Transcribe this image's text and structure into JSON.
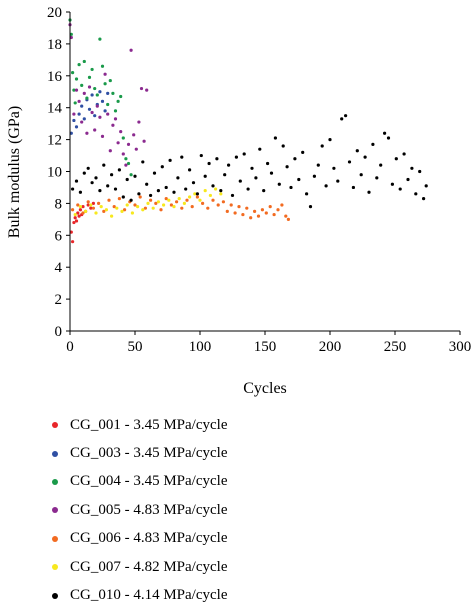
{
  "chart_data": {
    "type": "scatter",
    "xlabel": "Cycles",
    "ylabel": "Bulk modulus (GPa)",
    "xlim": [
      0,
      300
    ],
    "ylim": [
      0,
      20
    ],
    "x_ticks": [
      0,
      50,
      100,
      150,
      200,
      250,
      300
    ],
    "y_ticks": [
      0,
      2,
      4,
      6,
      8,
      10,
      12,
      14,
      16,
      18,
      20
    ],
    "grid": false,
    "legend_position": "below",
    "series": [
      {
        "name": "CG_001 - 3.45 MPa/cycle",
        "color": "#e8262a",
        "points": [
          [
            1,
            6.2
          ],
          [
            2,
            5.6
          ],
          [
            3,
            6.8
          ],
          [
            4,
            7.1
          ],
          [
            5,
            6.9
          ],
          [
            6,
            7.4
          ],
          [
            7,
            7.2
          ],
          [
            8,
            7.6
          ],
          [
            9,
            7.3
          ],
          [
            10,
            7.8
          ],
          [
            12,
            7.5
          ],
          [
            14,
            7.9
          ],
          [
            16,
            7.7
          ],
          [
            18,
            8.0
          ]
        ]
      },
      {
        "name": "CG_003 - 3.45 MPa/cycle",
        "color": "#2f4fa3",
        "points": [
          [
            1,
            12.4
          ],
          [
            3,
            13.2
          ],
          [
            5,
            12.8
          ],
          [
            7,
            13.6
          ],
          [
            9,
            14.1
          ],
          [
            11,
            13.3
          ],
          [
            13,
            14.5
          ],
          [
            15,
            13.9
          ],
          [
            17,
            14.8
          ],
          [
            19,
            13.5
          ],
          [
            21,
            14.2
          ],
          [
            23,
            15.0
          ],
          [
            25,
            14.4
          ],
          [
            27,
            13.8
          ],
          [
            29,
            14.9
          ]
        ]
      },
      {
        "name": "CG_004 - 3.45 MPa/cycle",
        "color": "#1a9a4a",
        "points": [
          [
            0,
            19.5
          ],
          [
            1,
            18.6
          ],
          [
            2,
            16.2
          ],
          [
            3,
            15.1
          ],
          [
            4,
            14.3
          ],
          [
            5,
            15.8
          ],
          [
            7,
            16.7
          ],
          [
            9,
            15.4
          ],
          [
            11,
            16.9
          ],
          [
            13,
            14.6
          ],
          [
            15,
            15.9
          ],
          [
            17,
            16.4
          ],
          [
            19,
            15.2
          ],
          [
            21,
            14.8
          ],
          [
            23,
            18.3
          ],
          [
            25,
            16.6
          ],
          [
            27,
            15.5
          ],
          [
            29,
            14.2
          ],
          [
            31,
            15.7
          ],
          [
            33,
            14.9
          ],
          [
            35,
            13.8
          ],
          [
            37,
            14.4
          ],
          [
            39,
            14.7
          ],
          [
            41,
            12.1
          ],
          [
            43,
            10.8
          ],
          [
            45,
            10.5
          ],
          [
            47,
            9.8
          ]
        ]
      },
      {
        "name": "CG_005 - 4.83 MPa/cycle",
        "color": "#8b2a8f",
        "points": [
          [
            0,
            19.2
          ],
          [
            1,
            18.4
          ],
          [
            3,
            13.6
          ],
          [
            5,
            15.1
          ],
          [
            7,
            14.4
          ],
          [
            9,
            13.1
          ],
          [
            11,
            14.9
          ],
          [
            13,
            12.4
          ],
          [
            15,
            15.3
          ],
          [
            17,
            13.7
          ],
          [
            19,
            12.6
          ],
          [
            21,
            14.1
          ],
          [
            23,
            13.4
          ],
          [
            25,
            12.2
          ],
          [
            27,
            16.1
          ],
          [
            29,
            13.6
          ],
          [
            31,
            11.3
          ],
          [
            33,
            12.9
          ],
          [
            35,
            13.3
          ],
          [
            37,
            11.8
          ],
          [
            39,
            12.5
          ],
          [
            41,
            11.1
          ],
          [
            43,
            10.4
          ],
          [
            45,
            11.7
          ],
          [
            47,
            17.6
          ],
          [
            49,
            12.3
          ],
          [
            51,
            11.4
          ],
          [
            53,
            13.1
          ],
          [
            55,
            15.2
          ],
          [
            57,
            11.9
          ],
          [
            59,
            15.1
          ]
        ]
      },
      {
        "name": "CG_006 - 4.83 MPa/cycle",
        "color": "#f26b21",
        "points": [
          [
            2,
            7.6
          ],
          [
            6,
            7.9
          ],
          [
            10,
            7.4
          ],
          [
            14,
            8.1
          ],
          [
            18,
            7.7
          ],
          [
            22,
            8.0
          ],
          [
            26,
            7.5
          ],
          [
            30,
            8.2
          ],
          [
            34,
            7.8
          ],
          [
            38,
            8.3
          ],
          [
            42,
            7.6
          ],
          [
            46,
            8.1
          ],
          [
            50,
            7.9
          ],
          [
            54,
            8.4
          ],
          [
            58,
            7.7
          ],
          [
            62,
            8.2
          ],
          [
            66,
            8.0
          ],
          [
            70,
            7.6
          ],
          [
            74,
            8.3
          ],
          [
            78,
            7.9
          ],
          [
            82,
            8.1
          ],
          [
            86,
            7.7
          ],
          [
            90,
            8.2
          ],
          [
            94,
            7.8
          ],
          [
            98,
            8.4
          ],
          [
            102,
            8.0
          ],
          [
            106,
            7.7
          ],
          [
            110,
            8.2
          ],
          [
            114,
            7.9
          ],
          [
            118,
            8.1
          ],
          [
            121,
            7.5
          ],
          [
            124,
            7.9
          ],
          [
            127,
            7.4
          ],
          [
            130,
            7.8
          ],
          [
            133,
            7.3
          ],
          [
            136,
            7.7
          ],
          [
            139,
            7.1
          ],
          [
            142,
            7.5
          ],
          [
            145,
            7.2
          ],
          [
            148,
            7.6
          ],
          [
            151,
            7.4
          ],
          [
            154,
            7.8
          ],
          [
            157,
            7.3
          ],
          [
            160,
            7.6
          ],
          [
            163,
            7.9
          ],
          [
            166,
            7.2
          ],
          [
            168,
            7.0
          ]
        ]
      },
      {
        "name": "CG_007 - 4.82 MPa/cycle",
        "color": "#f7e81e",
        "points": [
          [
            4,
            7.3
          ],
          [
            8,
            7.8
          ],
          [
            12,
            7.5
          ],
          [
            16,
            7.9
          ],
          [
            20,
            7.4
          ],
          [
            24,
            7.8
          ],
          [
            28,
            7.6
          ],
          [
            32,
            7.2
          ],
          [
            36,
            7.7
          ],
          [
            40,
            7.5
          ],
          [
            44,
            7.9
          ],
          [
            48,
            7.4
          ],
          [
            52,
            7.8
          ],
          [
            56,
            7.6
          ],
          [
            60,
            8.0
          ],
          [
            64,
            7.7
          ],
          [
            68,
            8.1
          ],
          [
            72,
            7.9
          ],
          [
            76,
            8.2
          ],
          [
            80,
            7.8
          ],
          [
            84,
            8.3
          ],
          [
            88,
            8.0
          ],
          [
            92,
            8.4
          ],
          [
            96,
            8.6
          ],
          [
            100,
            8.2
          ],
          [
            104,
            8.8
          ],
          [
            108,
            8.5
          ],
          [
            112,
            8.9
          ],
          [
            116,
            8.6
          ]
        ]
      },
      {
        "name": "CG_010 - 4.14 MPa/cycle",
        "color": "#000000",
        "points": [
          [
            2,
            8.9
          ],
          [
            5,
            9.4
          ],
          [
            8,
            8.7
          ],
          [
            11,
            9.9
          ],
          [
            14,
            10.2
          ],
          [
            17,
            9.3
          ],
          [
            20,
            9.6
          ],
          [
            23,
            8.8
          ],
          [
            26,
            10.4
          ],
          [
            29,
            9.1
          ],
          [
            32,
            9.8
          ],
          [
            35,
            8.9
          ],
          [
            38,
            10.1
          ],
          [
            41,
            8.4
          ],
          [
            44,
            9.5
          ],
          [
            47,
            8.2
          ],
          [
            50,
            9.7
          ],
          [
            53,
            8.6
          ],
          [
            56,
            10.6
          ],
          [
            59,
            9.2
          ],
          [
            62,
            8.5
          ],
          [
            65,
            9.9
          ],
          [
            68,
            8.8
          ],
          [
            71,
            10.3
          ],
          [
            74,
            9.0
          ],
          [
            77,
            10.7
          ],
          [
            80,
            8.7
          ],
          [
            83,
            9.6
          ],
          [
            86,
            10.9
          ],
          [
            89,
            8.9
          ],
          [
            92,
            10.1
          ],
          [
            95,
            9.3
          ],
          [
            98,
            8.6
          ],
          [
            101,
            11.0
          ],
          [
            104,
            9.7
          ],
          [
            107,
            10.5
          ],
          [
            110,
            9.1
          ],
          [
            113,
            10.8
          ],
          [
            116,
            8.8
          ],
          [
            119,
            9.8
          ],
          [
            122,
            10.4
          ],
          [
            125,
            8.5
          ],
          [
            128,
            10.9
          ],
          [
            131,
            9.4
          ],
          [
            134,
            11.1
          ],
          [
            137,
            8.9
          ],
          [
            140,
            10.2
          ],
          [
            143,
            9.6
          ],
          [
            146,
            11.4
          ],
          [
            149,
            8.8
          ],
          [
            152,
            10.5
          ],
          [
            155,
            9.9
          ],
          [
            158,
            12.1
          ],
          [
            161,
            9.2
          ],
          [
            164,
            11.6
          ],
          [
            167,
            10.3
          ],
          [
            170,
            9.0
          ],
          [
            173,
            10.8
          ],
          [
            176,
            9.5
          ],
          [
            179,
            11.2
          ],
          [
            182,
            8.6
          ],
          [
            185,
            7.8
          ],
          [
            188,
            9.7
          ],
          [
            191,
            10.4
          ],
          [
            194,
            11.6
          ],
          [
            197,
            9.1
          ],
          [
            200,
            12.0
          ],
          [
            203,
            10.2
          ],
          [
            206,
            9.4
          ],
          [
            209,
            13.3
          ],
          [
            212,
            13.5
          ],
          [
            215,
            10.6
          ],
          [
            218,
            9.0
          ],
          [
            221,
            11.3
          ],
          [
            224,
            9.8
          ],
          [
            227,
            10.9
          ],
          [
            230,
            8.7
          ],
          [
            233,
            11.7
          ],
          [
            236,
            9.6
          ],
          [
            239,
            10.4
          ],
          [
            242,
            12.4
          ],
          [
            245,
            12.1
          ],
          [
            248,
            9.2
          ],
          [
            251,
            10.8
          ],
          [
            254,
            8.9
          ],
          [
            257,
            11.1
          ],
          [
            260,
            9.5
          ],
          [
            263,
            10.2
          ],
          [
            266,
            8.6
          ],
          [
            269,
            10.0
          ],
          [
            272,
            8.3
          ],
          [
            274,
            9.1
          ]
        ]
      }
    ]
  }
}
